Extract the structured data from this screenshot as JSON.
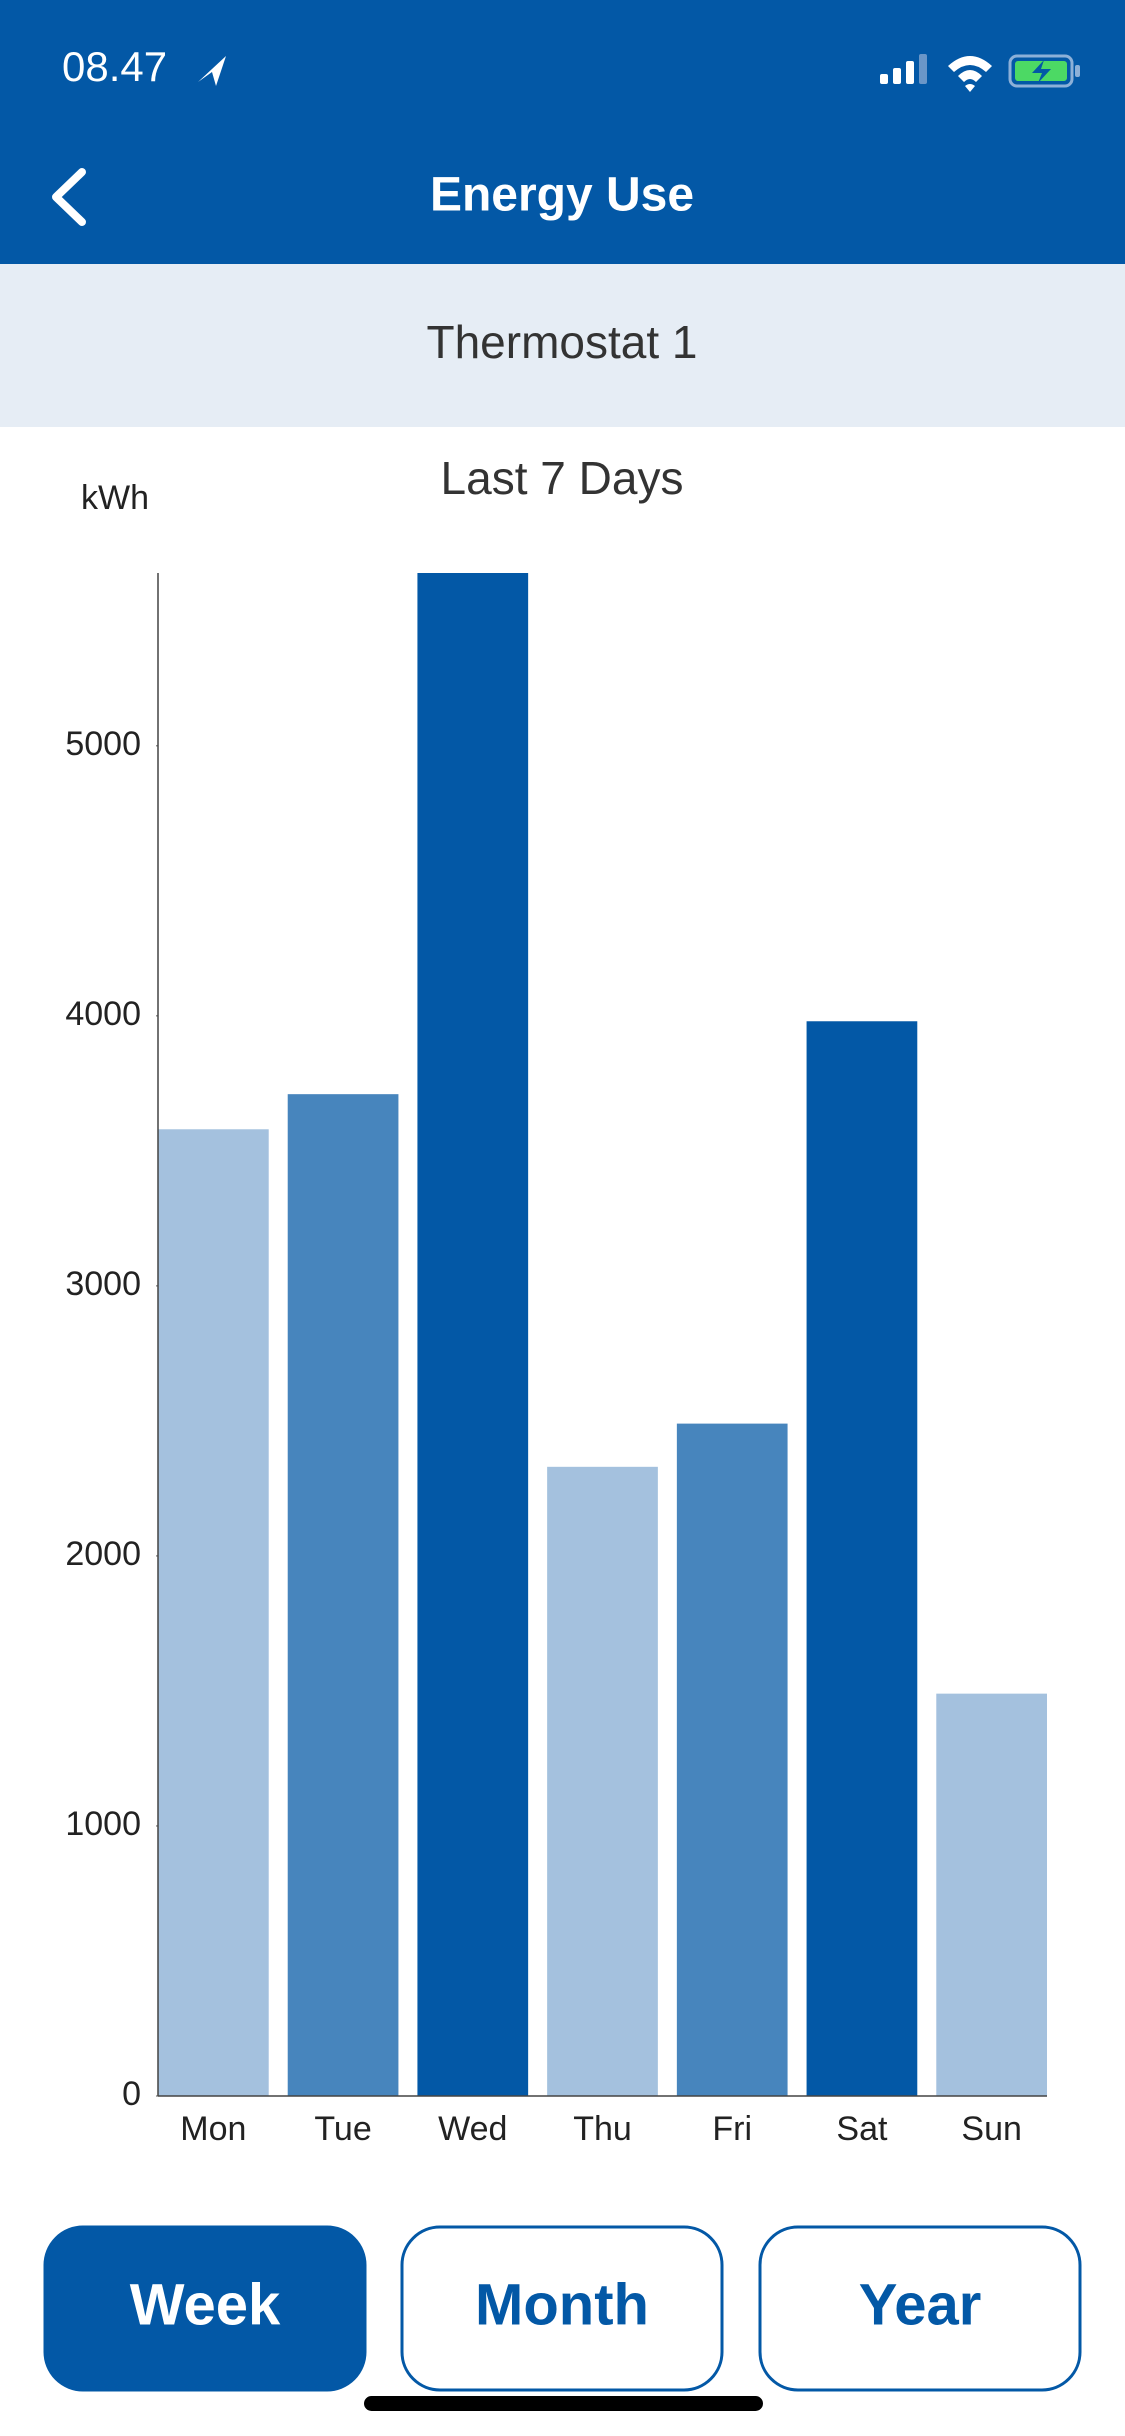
{
  "status_bar": {
    "time": "08.47"
  },
  "header": {
    "title": "Energy Use"
  },
  "subheader": {
    "title": "Thermostat 1"
  },
  "chart_data": {
    "type": "bar",
    "title": "Last 7 Days",
    "y_label": "kWh",
    "categories": [
      "Mon",
      "Tue",
      "Wed",
      "Thu",
      "Fri",
      "Sat",
      "Sun"
    ],
    "values": [
      3580,
      3710,
      5640,
      2330,
      2490,
      3980,
      1490
    ],
    "colors": [
      "#a4c1de",
      "#4785bd",
      "#0358a6",
      "#a4c1de",
      "#4785bd",
      "#0358a6",
      "#a4c1de"
    ],
    "ylim": [
      0,
      5640
    ],
    "yticks": [
      0,
      1000,
      2000,
      3000,
      4000,
      5000
    ],
    "grid": false
  },
  "tabs": {
    "items": [
      "Week",
      "Month",
      "Year"
    ],
    "active": 0
  }
}
